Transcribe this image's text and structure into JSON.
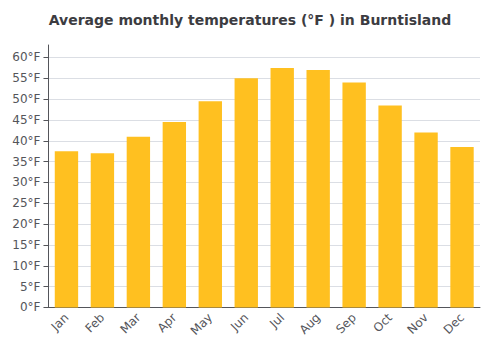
{
  "chart_data": {
    "type": "bar",
    "title": "Average monthly temperatures (°F ) in Burntisland",
    "categories": [
      "Jan",
      "Feb",
      "Mar",
      "Apr",
      "May",
      "Jun",
      "Jul",
      "Aug",
      "Sep",
      "Oct",
      "Nov",
      "Dec"
    ],
    "values": [
      37.5,
      37.0,
      41.0,
      44.5,
      49.5,
      55.0,
      57.5,
      57.0,
      54.0,
      48.5,
      42.0,
      38.5
    ],
    "color": "#FFC020",
    "ylim": [
      0,
      63
    ],
    "yticks": [
      {
        "value": 0,
        "label": "0°F"
      },
      {
        "value": 5,
        "label": "5°F"
      },
      {
        "value": 10,
        "label": "10°F"
      },
      {
        "value": 15,
        "label": "15°F"
      },
      {
        "value": 20,
        "label": "20°F"
      },
      {
        "value": 25,
        "label": "25°F"
      },
      {
        "value": 30,
        "label": "30°F"
      },
      {
        "value": 35,
        "label": "35°F"
      },
      {
        "value": 40,
        "label": "40°F"
      },
      {
        "value": 45,
        "label": "45°F"
      },
      {
        "value": 50,
        "label": "50°F"
      },
      {
        "value": 55,
        "label": "55°F"
      },
      {
        "value": 60,
        "label": "60°F"
      }
    ],
    "grid": true
  }
}
